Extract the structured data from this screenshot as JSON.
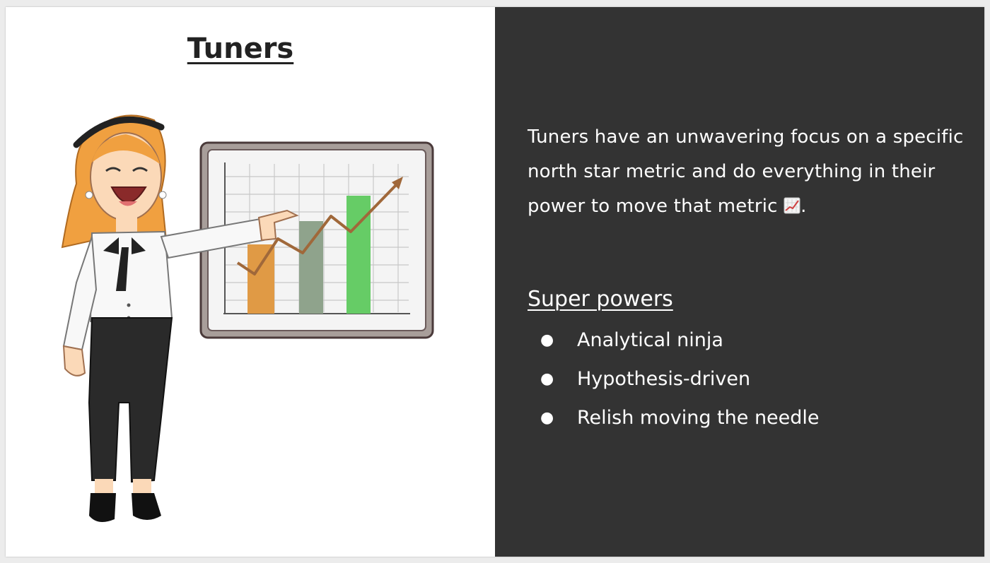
{
  "slide": {
    "title": "Tuners",
    "description": "Tuners have an unwavering focus on a specific north star metric and do everything in their power to move that metric",
    "description_emoji": "chart-increasing-icon",
    "description_end": ".",
    "powers_heading": "Super powers",
    "powers": [
      {
        "bullet": "●",
        "label": "Analytical ninja"
      },
      {
        "bullet": "●",
        "label": "Hypothesis-driven"
      },
      {
        "bullet": "●",
        "label": "Relish moving the needle"
      }
    ]
  },
  "colors": {
    "left_background": "#ffffff",
    "right_background": "#333333",
    "title_color": "#222222",
    "text_color": "#ffffff",
    "bar_orange": "#e09a45",
    "bar_gray_green": "#8fa38c",
    "bar_green": "#66cc66",
    "trend_arrow": "#a0683a"
  },
  "illustration": {
    "name": "woman-presenting-chart",
    "chart_bars_relative": [
      0.45,
      0.6,
      0.78
    ]
  }
}
